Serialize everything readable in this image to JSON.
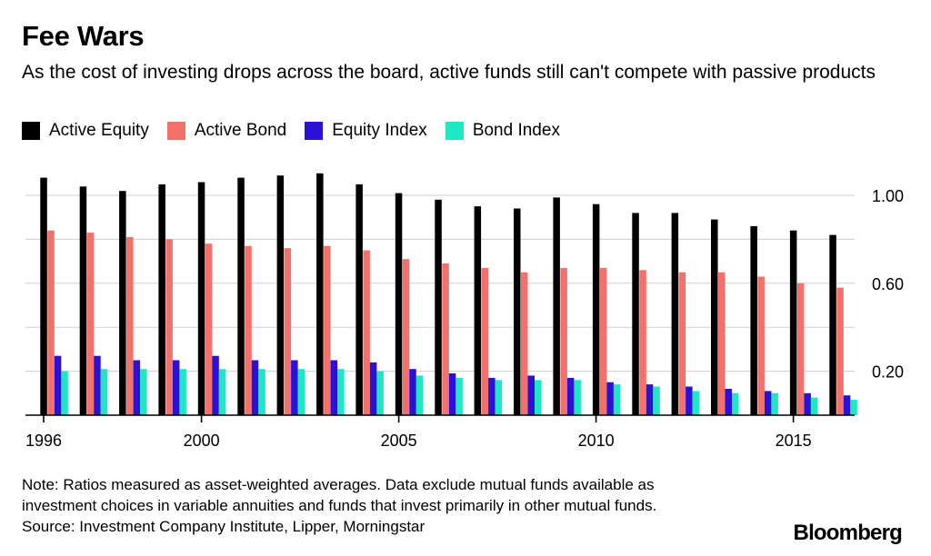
{
  "title": "Fee Wars",
  "subtitle": "As the cost of investing drops across the board, active funds still can't compete with passive products",
  "note_line1": "Note: Ratios measured as asset-weighted averages. Data exclude mutual funds available as",
  "note_line2": "investment choices in variable annuities and funds that invest primarily in other mutual funds.",
  "source": "Source: Investment Company Institute, Lipper, Morningstar",
  "brand": "Bloomberg",
  "chart_data": {
    "type": "bar",
    "title": "Fee Wars",
    "subtitle": "As the cost of investing drops across the board, active funds still can't compete with passive products",
    "xlabel": "",
    "ylabel": "",
    "categories": [
      "1996",
      "1997",
      "1998",
      "1999",
      "2000",
      "2001",
      "2002",
      "2003",
      "2004",
      "2005",
      "2006",
      "2007",
      "2008",
      "2009",
      "2010",
      "2011",
      "2012",
      "2013",
      "2014",
      "2015",
      "2016"
    ],
    "x_tick_labels": [
      "1996",
      "2000",
      "2005",
      "2010",
      "2015"
    ],
    "y_tick_labels": [
      "1.00",
      "0.60",
      "0.20"
    ],
    "y_ticks": [
      1.0,
      0.6,
      0.2
    ],
    "gridlines": [
      0.2,
      0.4,
      0.6,
      0.8,
      1.0
    ],
    "ylim": [
      0,
      1.12
    ],
    "y_axis_position": "right",
    "grid": true,
    "legend_position": "top-left",
    "series": [
      {
        "name": "Active Equity",
        "color": "#000000",
        "values": [
          1.08,
          1.04,
          1.02,
          1.05,
          1.06,
          1.08,
          1.09,
          1.1,
          1.05,
          1.01,
          0.98,
          0.95,
          0.94,
          0.99,
          0.96,
          0.92,
          0.92,
          0.89,
          0.86,
          0.84,
          0.82
        ]
      },
      {
        "name": "Active Bond",
        "color": "#f4716b",
        "values": [
          0.84,
          0.83,
          0.81,
          0.8,
          0.78,
          0.77,
          0.76,
          0.77,
          0.75,
          0.71,
          0.69,
          0.67,
          0.65,
          0.67,
          0.67,
          0.66,
          0.65,
          0.65,
          0.63,
          0.6,
          0.58
        ]
      },
      {
        "name": "Equity Index",
        "color": "#2b10d6",
        "values": [
          0.27,
          0.27,
          0.25,
          0.25,
          0.27,
          0.25,
          0.25,
          0.25,
          0.24,
          0.21,
          0.19,
          0.17,
          0.18,
          0.17,
          0.15,
          0.14,
          0.13,
          0.12,
          0.11,
          0.1,
          0.09
        ]
      },
      {
        "name": "Bond Index",
        "color": "#1ee8c4",
        "values": [
          0.2,
          0.21,
          0.21,
          0.21,
          0.21,
          0.21,
          0.21,
          0.21,
          0.2,
          0.18,
          0.17,
          0.16,
          0.16,
          0.16,
          0.14,
          0.13,
          0.11,
          0.1,
          0.1,
          0.08,
          0.07
        ]
      }
    ]
  }
}
